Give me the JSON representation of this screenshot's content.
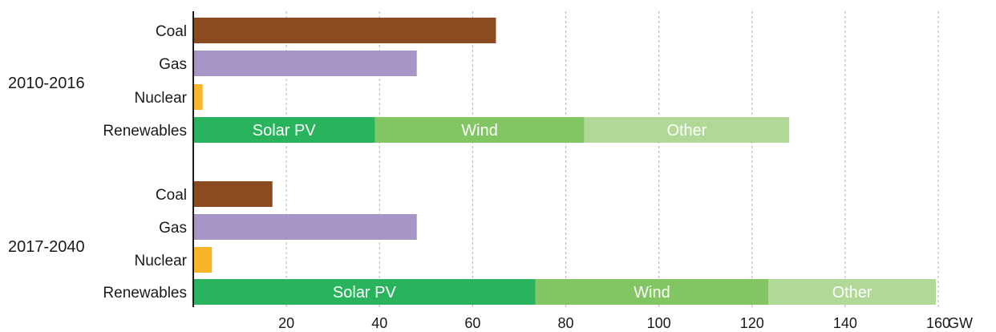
{
  "chart_data": {
    "type": "bar",
    "orientation": "horizontal",
    "stacked": true,
    "xlim": [
      0,
      160
    ],
    "xticks": [
      20,
      40,
      60,
      80,
      100,
      120,
      140,
      160
    ],
    "x_unit": "GW",
    "grid": "vertical dashed",
    "colors": {
      "Coal": "#8b4a1f",
      "Gas": "#a695c6",
      "Nuclear": "#f8b52a",
      "Solar PV": "#29b35d",
      "Wind": "#82c563",
      "Other": "#b1d897"
    },
    "groups": [
      {
        "period": "2010-2016",
        "bars": [
          {
            "category": "Coal",
            "segments": [
              {
                "name": "Coal",
                "value": 65
              }
            ]
          },
          {
            "category": "Gas",
            "segments": [
              {
                "name": "Gas",
                "value": 48
              }
            ]
          },
          {
            "category": "Nuclear",
            "segments": [
              {
                "name": "Nuclear",
                "value": 2
              }
            ]
          },
          {
            "category": "Renewables",
            "segments": [
              {
                "name": "Solar PV",
                "value": 39,
                "label": "Solar PV"
              },
              {
                "name": "Wind",
                "value": 45,
                "label": "Wind"
              },
              {
                "name": "Other",
                "value": 44,
                "label": "Other"
              }
            ]
          }
        ]
      },
      {
        "period": "2017-2040",
        "bars": [
          {
            "category": "Coal",
            "segments": [
              {
                "name": "Coal",
                "value": 17
              }
            ]
          },
          {
            "category": "Gas",
            "segments": [
              {
                "name": "Gas",
                "value": 48
              }
            ]
          },
          {
            "category": "Nuclear",
            "segments": [
              {
                "name": "Nuclear",
                "value": 4
              }
            ]
          },
          {
            "category": "Renewables",
            "segments": [
              {
                "name": "Solar PV",
                "value": 73.5,
                "label": "Solar PV"
              },
              {
                "name": "Wind",
                "value": 50,
                "label": "Wind"
              },
              {
                "name": "Other",
                "value": 36,
                "label": "Other"
              }
            ]
          }
        ]
      }
    ]
  }
}
